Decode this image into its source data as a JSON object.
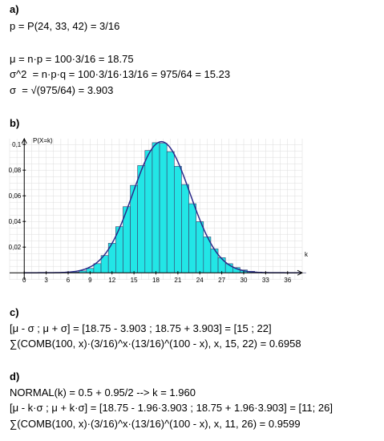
{
  "sections": {
    "a": {
      "label": "a)",
      "lines": [
        "p = P(24, 33, 42) = 3/16",
        "μ = n·p = 100·3/16 = 18.75",
        "σ^2  = n·p·q = 100·3/16·13/16 = 975/64 = 15.23",
        "σ  = √(975/64) = 3.903"
      ]
    },
    "b": {
      "label": "b)"
    },
    "c": {
      "label": "c)",
      "lines": [
        "[μ - σ ; μ + σ] = [18.75 - 3.903 ; 18.75 + 3.903] = [15 ; 22]",
        "∑(COMB(100, x)·(3/16)^x·(13/16)^(100 - x), x, 15, 22) = 0.6958"
      ]
    },
    "d": {
      "label": "d)",
      "lines": [
        "NORMAL(k) = 0.5 + 0.95/2 --> k = 1.960",
        "[μ - k·σ ; μ + k·σ] = [18.75 - 1.96·3.903 ; 18.75 + 1.96·3.903] = [11; 26]",
        "∑(COMB(100, x)·(3/16)^x·(13/16)^(100 - x), x, 11, 26) = 0.9599"
      ]
    }
  },
  "chart_data": {
    "type": "bar",
    "ylabel": "P(X=k)",
    "xlabel": "k",
    "xlim": [
      -2,
      38
    ],
    "ylim": [
      -0.0055,
      0.1045
    ],
    "x_ticks": [
      0,
      3,
      6,
      9,
      12,
      15,
      18,
      21,
      24,
      27,
      30,
      33,
      36
    ],
    "x_tick_labels": [
      "0",
      "3",
      "6",
      "9",
      "12",
      "15",
      "18",
      "21",
      "24",
      "27",
      "30",
      "33",
      "36"
    ],
    "y_ticks": [
      0.02,
      0.04,
      0.06,
      0.08,
      0.1
    ],
    "y_tick_labels": [
      "0,02",
      "0,04",
      "0,06",
      "0,08",
      "0,1"
    ],
    "grid": true,
    "binomial": {
      "n": 100,
      "p": 0.1875
    },
    "normal_curve": {
      "mu": 18.75,
      "sigma": 3.903
    },
    "colors": {
      "bars": "#22e6e6",
      "bar_edge": "#3a3a6a",
      "curve": "#2a2a8a",
      "axis": "#000000",
      "grid": "#dcdcdc"
    }
  }
}
